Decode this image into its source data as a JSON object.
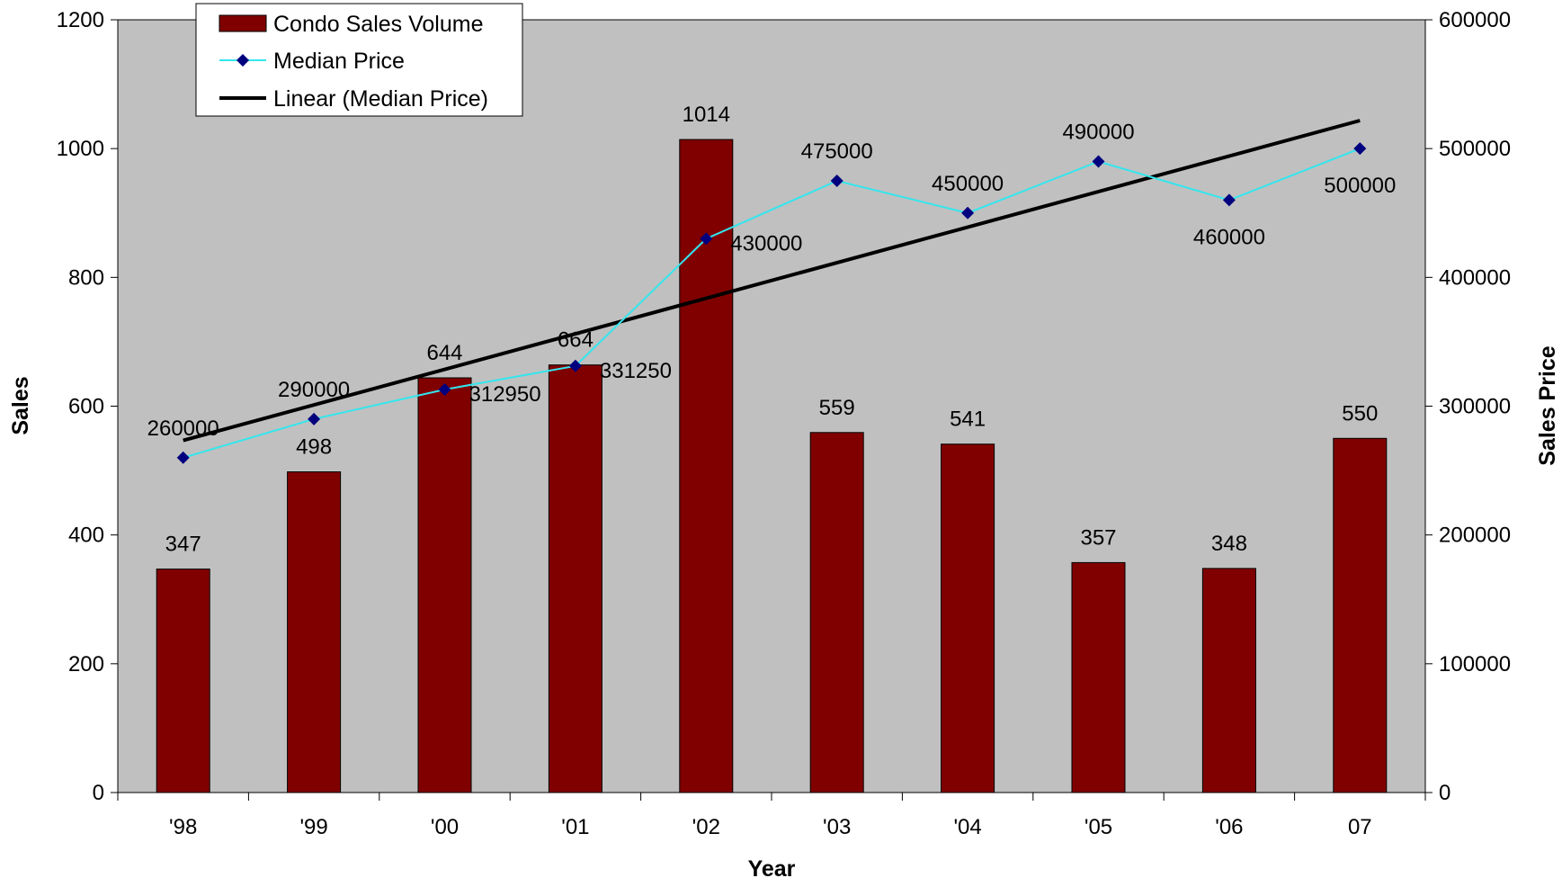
{
  "chart_data": {
    "type": "bar",
    "categories": [
      "'98",
      "'99",
      "'00",
      "'01",
      "'02",
      "'03",
      "'04",
      "'05",
      "'06",
      "07"
    ],
    "xlabel": "Year",
    "ylabel_left": "Sales",
    "ylabel_right": "Sales Price",
    "ylim_left": [
      0,
      1200
    ],
    "ylim_right": [
      0,
      600000
    ],
    "yticks_left": [
      "0",
      "200",
      "400",
      "600",
      "800",
      "1000",
      "1200"
    ],
    "yticks_right": [
      "0",
      "100000",
      "200000",
      "300000",
      "400000",
      "500000",
      "600000"
    ],
    "legend_position": "top-left",
    "grid": false,
    "series": [
      {
        "name": "Condo Sales Volume",
        "kind": "bar",
        "axis": "left",
        "color": "#800000",
        "values": [
          347,
          498,
          644,
          664,
          1014,
          559,
          541,
          357,
          348,
          550
        ],
        "labels": [
          "347",
          "498",
          "644",
          "664",
          "1014",
          "559",
          "541",
          "357",
          "348",
          "550"
        ]
      },
      {
        "name": "Median Price",
        "kind": "line",
        "axis": "right",
        "color": "#33e6ee",
        "marker_color": "#00007f",
        "values": [
          260000,
          290000,
          312950,
          331250,
          430000,
          475000,
          450000,
          490000,
          460000,
          500000
        ],
        "labels": [
          "260000",
          "290000",
          "312950",
          "331250",
          "430000",
          "475000",
          "450000",
          "490000",
          "460000",
          "500000"
        ]
      },
      {
        "name": "Linear (Median Price)",
        "kind": "trendline",
        "axis": "right",
        "color": "#000000",
        "values": [
          273400,
          301000,
          328600,
          356200,
          383800,
          411400,
          439000,
          466600,
          494200,
          521800
        ]
      }
    ],
    "plot_background": "#c0c0c0"
  }
}
